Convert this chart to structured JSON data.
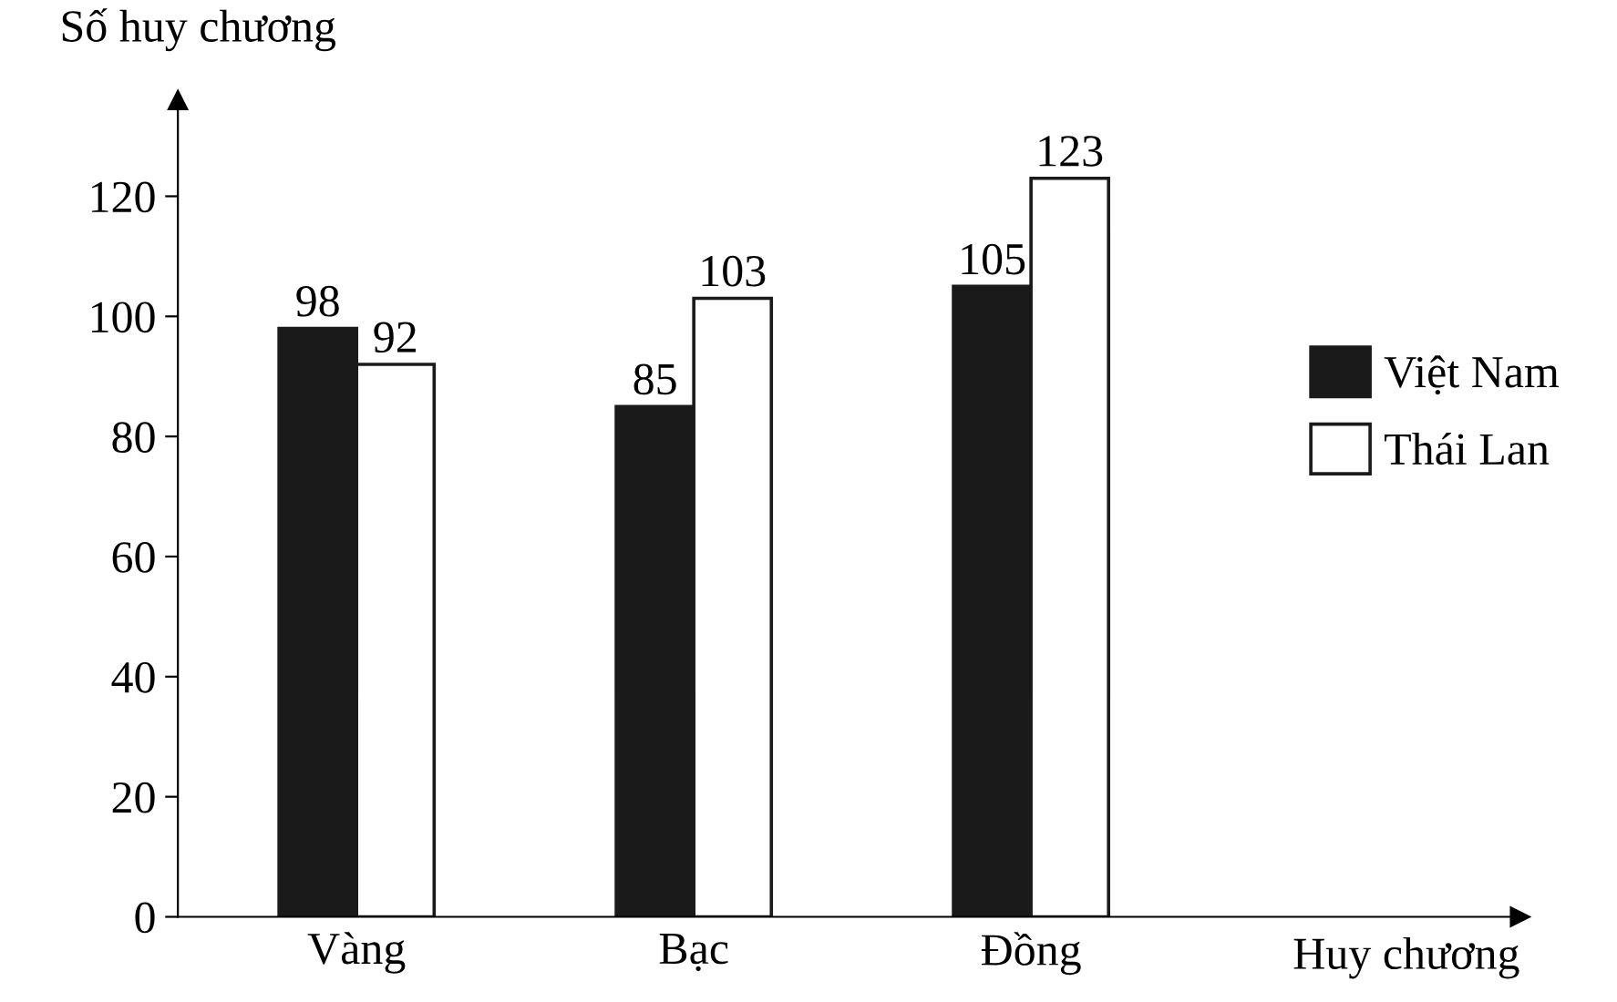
{
  "chart_data": {
    "type": "bar",
    "xlabel": "Huy chương",
    "ylabel": "Số huy chương",
    "categories": [
      "Vàng",
      "Bạc",
      "Đồng"
    ],
    "series": [
      {
        "name": "Việt Nam",
        "color": "#1a1a1a",
        "values": [
          98,
          85,
          105
        ]
      },
      {
        "name": "Thái Lan",
        "color": "#ffffff",
        "values": [
          92,
          103,
          123
        ]
      }
    ],
    "ylim": [
      0,
      136
    ],
    "yticks": [
      0,
      20,
      40,
      60,
      80,
      100,
      120
    ],
    "grid": false,
    "legend": "right",
    "data_labels": true
  }
}
